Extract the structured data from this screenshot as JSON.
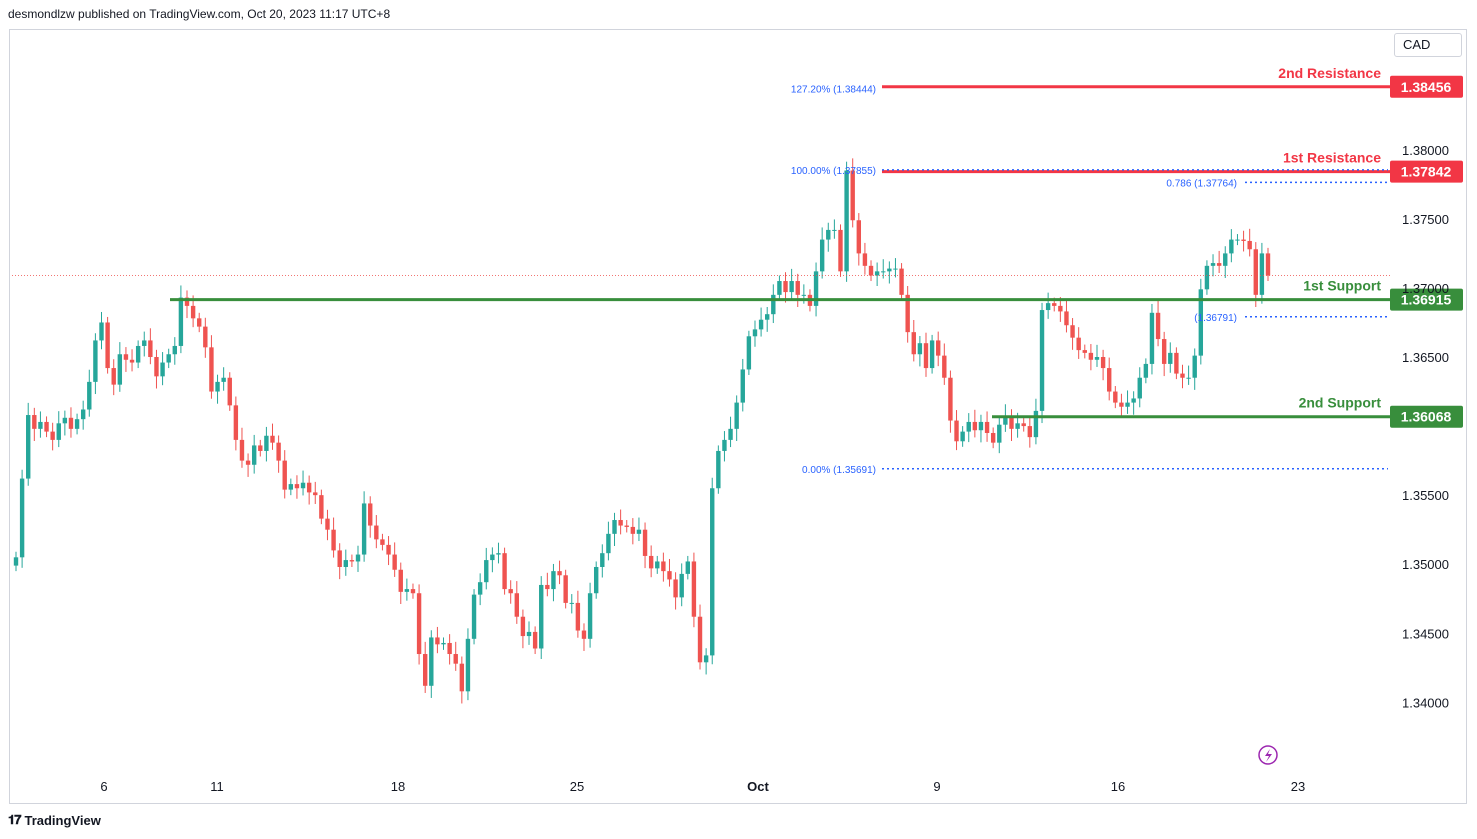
{
  "header": {
    "published_text": "desmondlzw published on TradingView.com, Oct 20, 2023 11:17 UTC+8"
  },
  "currency": "CAD",
  "footer": {
    "brand": "TradingView",
    "logo_icon": "tradingview-logo-icon"
  },
  "colors": {
    "up": "#26a69a",
    "down": "#ef5350",
    "resistance": "#f23645",
    "support": "#388e3c",
    "fib": "#2962ff",
    "axis_text": "#131722"
  },
  "chart_data": {
    "type": "candlestick",
    "symbol_currency": "CAD",
    "ylim": [
      1.338,
      1.3865
    ],
    "y_ticks": [
      {
        "value": 1.34,
        "label": "1.34000"
      },
      {
        "value": 1.345,
        "label": "1.34500"
      },
      {
        "value": 1.35,
        "label": "1.35000"
      },
      {
        "value": 1.355,
        "label": "1.35500"
      },
      {
        "value": 1.365,
        "label": "1.36500"
      },
      {
        "value": 1.37,
        "label": "1.37000"
      },
      {
        "value": 1.375,
        "label": "1.37500"
      },
      {
        "value": 1.38,
        "label": "1.38000"
      }
    ],
    "x_ticks": [
      {
        "label": "6",
        "bold": false
      },
      {
        "label": "11",
        "bold": false
      },
      {
        "label": "18",
        "bold": false
      },
      {
        "label": "25",
        "bold": false
      },
      {
        "label": "Oct",
        "bold": true
      },
      {
        "label": "9",
        "bold": false
      },
      {
        "label": "16",
        "bold": false
      },
      {
        "label": "23",
        "bold": false
      }
    ],
    "levels": [
      {
        "name": "2nd Resistance",
        "value": 1.38456,
        "label": "1.38456",
        "kind": "resistance"
      },
      {
        "name": "1st Resistance",
        "value": 1.37842,
        "label": "1.37842",
        "kind": "resistance"
      },
      {
        "name": "1st Support",
        "value": 1.36915,
        "label": "1.36915",
        "kind": "support"
      },
      {
        "name": "2nd Support",
        "value": 1.36068,
        "label": "1.36068",
        "kind": "support"
      }
    ],
    "fib_levels": [
      {
        "label": "127.20% (1.38444)",
        "value": 1.38444
      },
      {
        "label": "100.00% (1.37855)",
        "value": 1.37855
      },
      {
        "label": "0.00% (1.35691)",
        "value": 1.35691
      },
      {
        "label": "0.786 (1.37764)",
        "value": 1.37764
      },
      {
        "label": "(1.36791)",
        "value": 1.36791
      }
    ],
    "current_price": 1.3709,
    "closes": [
      1.3505,
      1.3562,
      1.3608,
      1.3598,
      1.3603,
      1.3596,
      1.359,
      1.3602,
      1.3606,
      1.3598,
      1.3605,
      1.3612,
      1.3632,
      1.3662,
      1.3675,
      1.3642,
      1.363,
      1.3652,
      1.3648,
      1.3646,
      1.3658,
      1.3662,
      1.365,
      1.3636,
      1.3646,
      1.3652,
      1.3658,
      1.3693,
      1.3687,
      1.3678,
      1.3672,
      1.3657,
      1.3625,
      1.3632,
      1.3635,
      1.3615,
      1.359,
      1.3575,
      1.3572,
      1.3586,
      1.3582,
      1.3593,
      1.3588,
      1.3575,
      1.3554,
      1.3558,
      1.3555,
      1.3559,
      1.3552,
      1.355,
      1.3533,
      1.3525,
      1.351,
      1.3498,
      1.3503,
      1.3502,
      1.3507,
      1.3544,
      1.3528,
      1.3518,
      1.3514,
      1.3507,
      1.3496,
      1.348,
      1.3482,
      1.3479,
      1.3435,
      1.3412,
      1.3447,
      1.3442,
      1.3443,
      1.3435,
      1.3428,
      1.3408,
      1.3446,
      1.3478,
      1.3487,
      1.3503,
      1.3507,
      1.3508,
      1.3482,
      1.3479,
      1.3462,
      1.3448,
      1.3451,
      1.3439,
      1.3485,
      1.3482,
      1.3495,
      1.3492,
      1.3472,
      1.3472,
      1.3452,
      1.3446,
      1.3479,
      1.3498,
      1.3508,
      1.3522,
      1.3532,
      1.3528,
      1.3527,
      1.3522,
      1.3525,
      1.3506,
      1.3497,
      1.3502,
      1.3495,
      1.3489,
      1.3476,
      1.3493,
      1.3502,
      1.3462,
      1.3429,
      1.3434,
      1.3555,
      1.3582,
      1.359,
      1.3598,
      1.3617,
      1.3641,
      1.3665,
      1.367,
      1.3677,
      1.3681,
      1.3695,
      1.3705,
      1.3697,
      1.3705,
      1.3695,
      1.3695,
      1.3687,
      1.3712,
      1.3735,
      1.3742,
      1.3742,
      1.3712,
      1.3785,
      1.3749,
      1.3725,
      1.3716,
      1.3709,
      1.3712,
      1.3712,
      1.3714,
      1.3714,
      1.3695,
      1.3668,
      1.3652,
      1.366,
      1.3642,
      1.3662,
      1.3651,
      1.3635,
      1.3604,
      1.3589,
      1.3596,
      1.3603,
      1.3597,
      1.3603,
      1.3595,
      1.3588,
      1.3601,
      1.3607,
      1.3598,
      1.3602,
      1.36,
      1.3592,
      1.3611,
      1.3684,
      1.3689,
      1.3687,
      1.3683,
      1.3673,
      1.3664,
      1.3655,
      1.3653,
      1.3648,
      1.365,
      1.3642,
      1.3625,
      1.3617,
      1.3614,
      1.3617,
      1.362,
      1.3635,
      1.3645,
      1.3682,
      1.3663,
      1.3645,
      1.3653,
      1.3638,
      1.3635,
      1.3635,
      1.3651,
      1.3699,
      1.3716,
      1.3718,
      1.3716,
      1.3725,
      1.3735,
      1.3735,
      1.3734,
      1.3728,
      1.3695,
      1.3725,
      1.3709
    ]
  }
}
